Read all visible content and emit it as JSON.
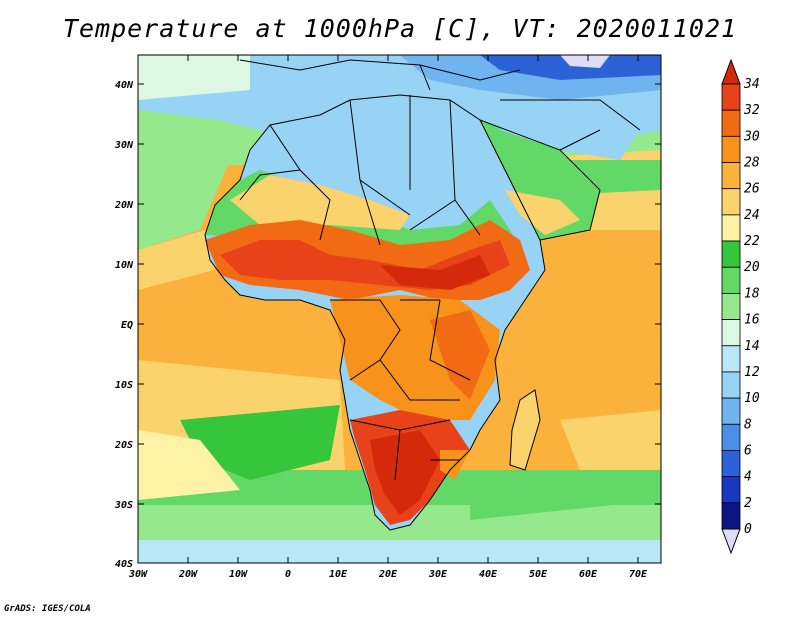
{
  "title": "Temperature at 1000hPa [C], VT: 2020011021",
  "credit": "GrADS: IGES/COLA",
  "map": {
    "lon_ticks": [
      "30W",
      "20W",
      "10W",
      "0",
      "10E",
      "20E",
      "30E",
      "40E",
      "50E",
      "60E",
      "70E"
    ],
    "lat_ticks": [
      "40N",
      "30N",
      "20N",
      "10N",
      "EQ",
      "10S",
      "20S",
      "30S",
      "40S"
    ]
  },
  "colorbar": {
    "levels": [
      "34",
      "32",
      "30",
      "28",
      "26",
      "24",
      "22",
      "20",
      "18",
      "16",
      "14",
      "12",
      "10",
      "8",
      "6",
      "4",
      "2",
      "0"
    ],
    "colors": [
      "#d42a0b",
      "#e8421b",
      "#f26a13",
      "#f7921b",
      "#fab23c",
      "#fbd36d",
      "#fdf2a6",
      "#36c63c",
      "#62d966",
      "#96e88c",
      "#dcf8e4",
      "#b9e7f7",
      "#97d3f5",
      "#6fb4ef",
      "#4a8fe6",
      "#2c62d8",
      "#1a37c1",
      "#0e1686"
    ],
    "top_color": "#d42a0b",
    "bottom_color": "#e0dcf8"
  }
}
